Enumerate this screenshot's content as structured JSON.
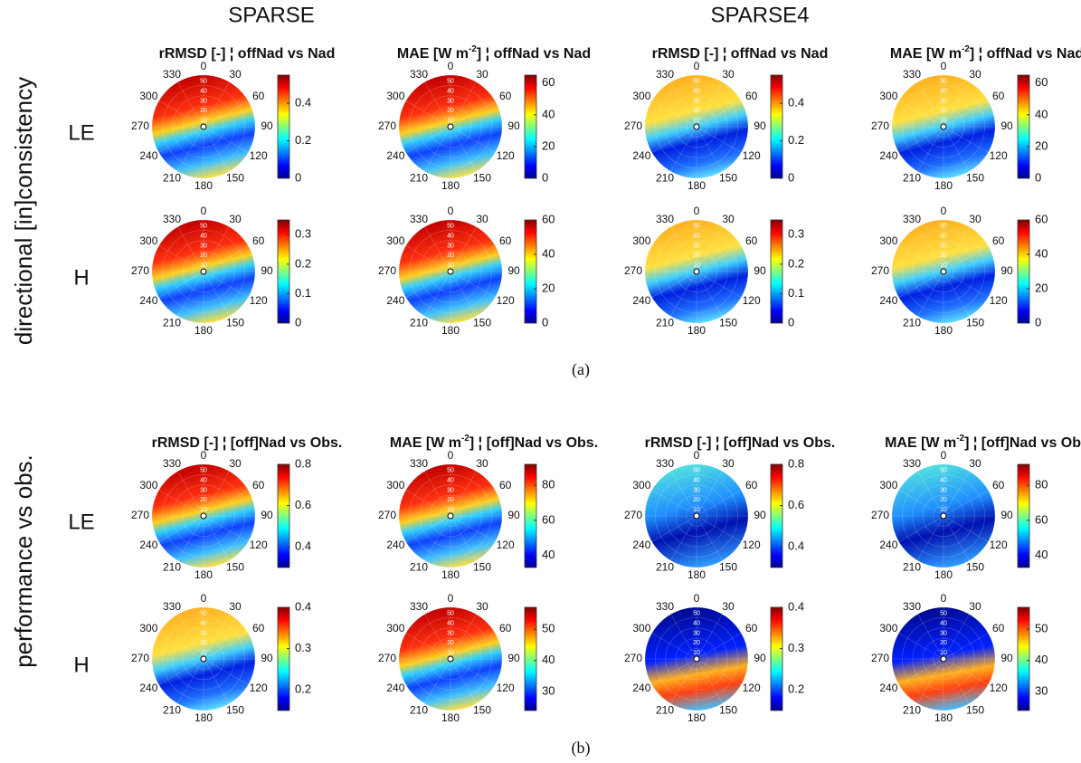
{
  "columns": [
    "SPARSE",
    "SPARSE4"
  ],
  "angles": [
    0,
    30,
    60,
    90,
    120,
    150,
    180,
    210,
    240,
    270,
    300,
    330
  ],
  "radii": [
    10,
    20,
    30,
    40,
    50
  ],
  "sections": [
    {
      "label": "directional [in]consistency",
      "caption": "(a)",
      "titles": [
        {
          "pre": "rRMSD [-] ¦ offNad vs Nad"
        },
        {
          "pre": "MAE [W m",
          "sup": "-2",
          "post": "] ¦ offNad vs Nad"
        },
        {
          "pre": "rRMSD [-] ¦ offNad vs Nad"
        },
        {
          "pre": "MAE [W m",
          "sup": "-2",
          "post": "] ¦ offNad vs Nad"
        }
      ],
      "rows": [
        {
          "label": "LE",
          "panels": [
            {
              "clim": [
                0,
                0.55
              ],
              "ticks": [
                0,
                0.2,
                0.4
              ]
            },
            {
              "clim": [
                0,
                65
              ],
              "ticks": [
                0,
                20,
                40,
                60
              ]
            },
            {
              "clim": [
                0,
                0.55
              ],
              "ticks": [
                0,
                0.2,
                0.4
              ]
            },
            {
              "clim": [
                0,
                65
              ],
              "ticks": [
                0,
                20,
                40,
                60
              ]
            }
          ]
        },
        {
          "label": "H",
          "panels": [
            {
              "clim": [
                0,
                0.35
              ],
              "ticks": [
                0,
                0.1,
                0.2,
                0.3
              ]
            },
            {
              "clim": [
                0,
                60
              ],
              "ticks": [
                0,
                20,
                40,
                60
              ]
            },
            {
              "clim": [
                0,
                0.35
              ],
              "ticks": [
                0,
                0.1,
                0.2,
                0.3
              ]
            },
            {
              "clim": [
                0,
                60
              ],
              "ticks": [
                0,
                20,
                40,
                60
              ]
            }
          ]
        }
      ]
    },
    {
      "label": "performance vs obs.",
      "caption": "(b)",
      "titles": [
        {
          "pre": "rRMSD [-] ¦ [off]Nad vs Obs."
        },
        {
          "pre": "MAE [W m",
          "sup": "-2",
          "post": "] ¦ [off]Nad vs Obs."
        },
        {
          "pre": "rRMSD [-] ¦ [off]Nad vs Obs."
        },
        {
          "pre": "MAE [W m",
          "sup": "-2",
          "post": "] ¦ [off]Nad vs Obs"
        }
      ],
      "rows": [
        {
          "label": "LE",
          "panels": [
            {
              "clim": [
                0.3,
                0.8
              ],
              "ticks": [
                0.4,
                0.6,
                0.8
              ]
            },
            {
              "clim": [
                33,
                92
              ],
              "ticks": [
                40,
                60,
                80
              ]
            },
            {
              "clim": [
                0.3,
                0.8
              ],
              "ticks": [
                0.4,
                0.6,
                0.8
              ]
            },
            {
              "clim": [
                33,
                92
              ],
              "ticks": [
                40,
                60,
                80
              ]
            }
          ]
        },
        {
          "label": "H",
          "panels": [
            {
              "clim": [
                0.15,
                0.4
              ],
              "ticks": [
                0.2,
                0.3,
                0.4
              ]
            },
            {
              "clim": [
                24,
                57
              ],
              "ticks": [
                30,
                40,
                50
              ]
            },
            {
              "clim": [
                0.15,
                0.4
              ],
              "ticks": [
                0.2,
                0.3,
                0.4
              ]
            },
            {
              "clim": [
                24,
                57
              ],
              "ticks": [
                30,
                40,
                50
              ]
            }
          ]
        }
      ]
    }
  ]
}
